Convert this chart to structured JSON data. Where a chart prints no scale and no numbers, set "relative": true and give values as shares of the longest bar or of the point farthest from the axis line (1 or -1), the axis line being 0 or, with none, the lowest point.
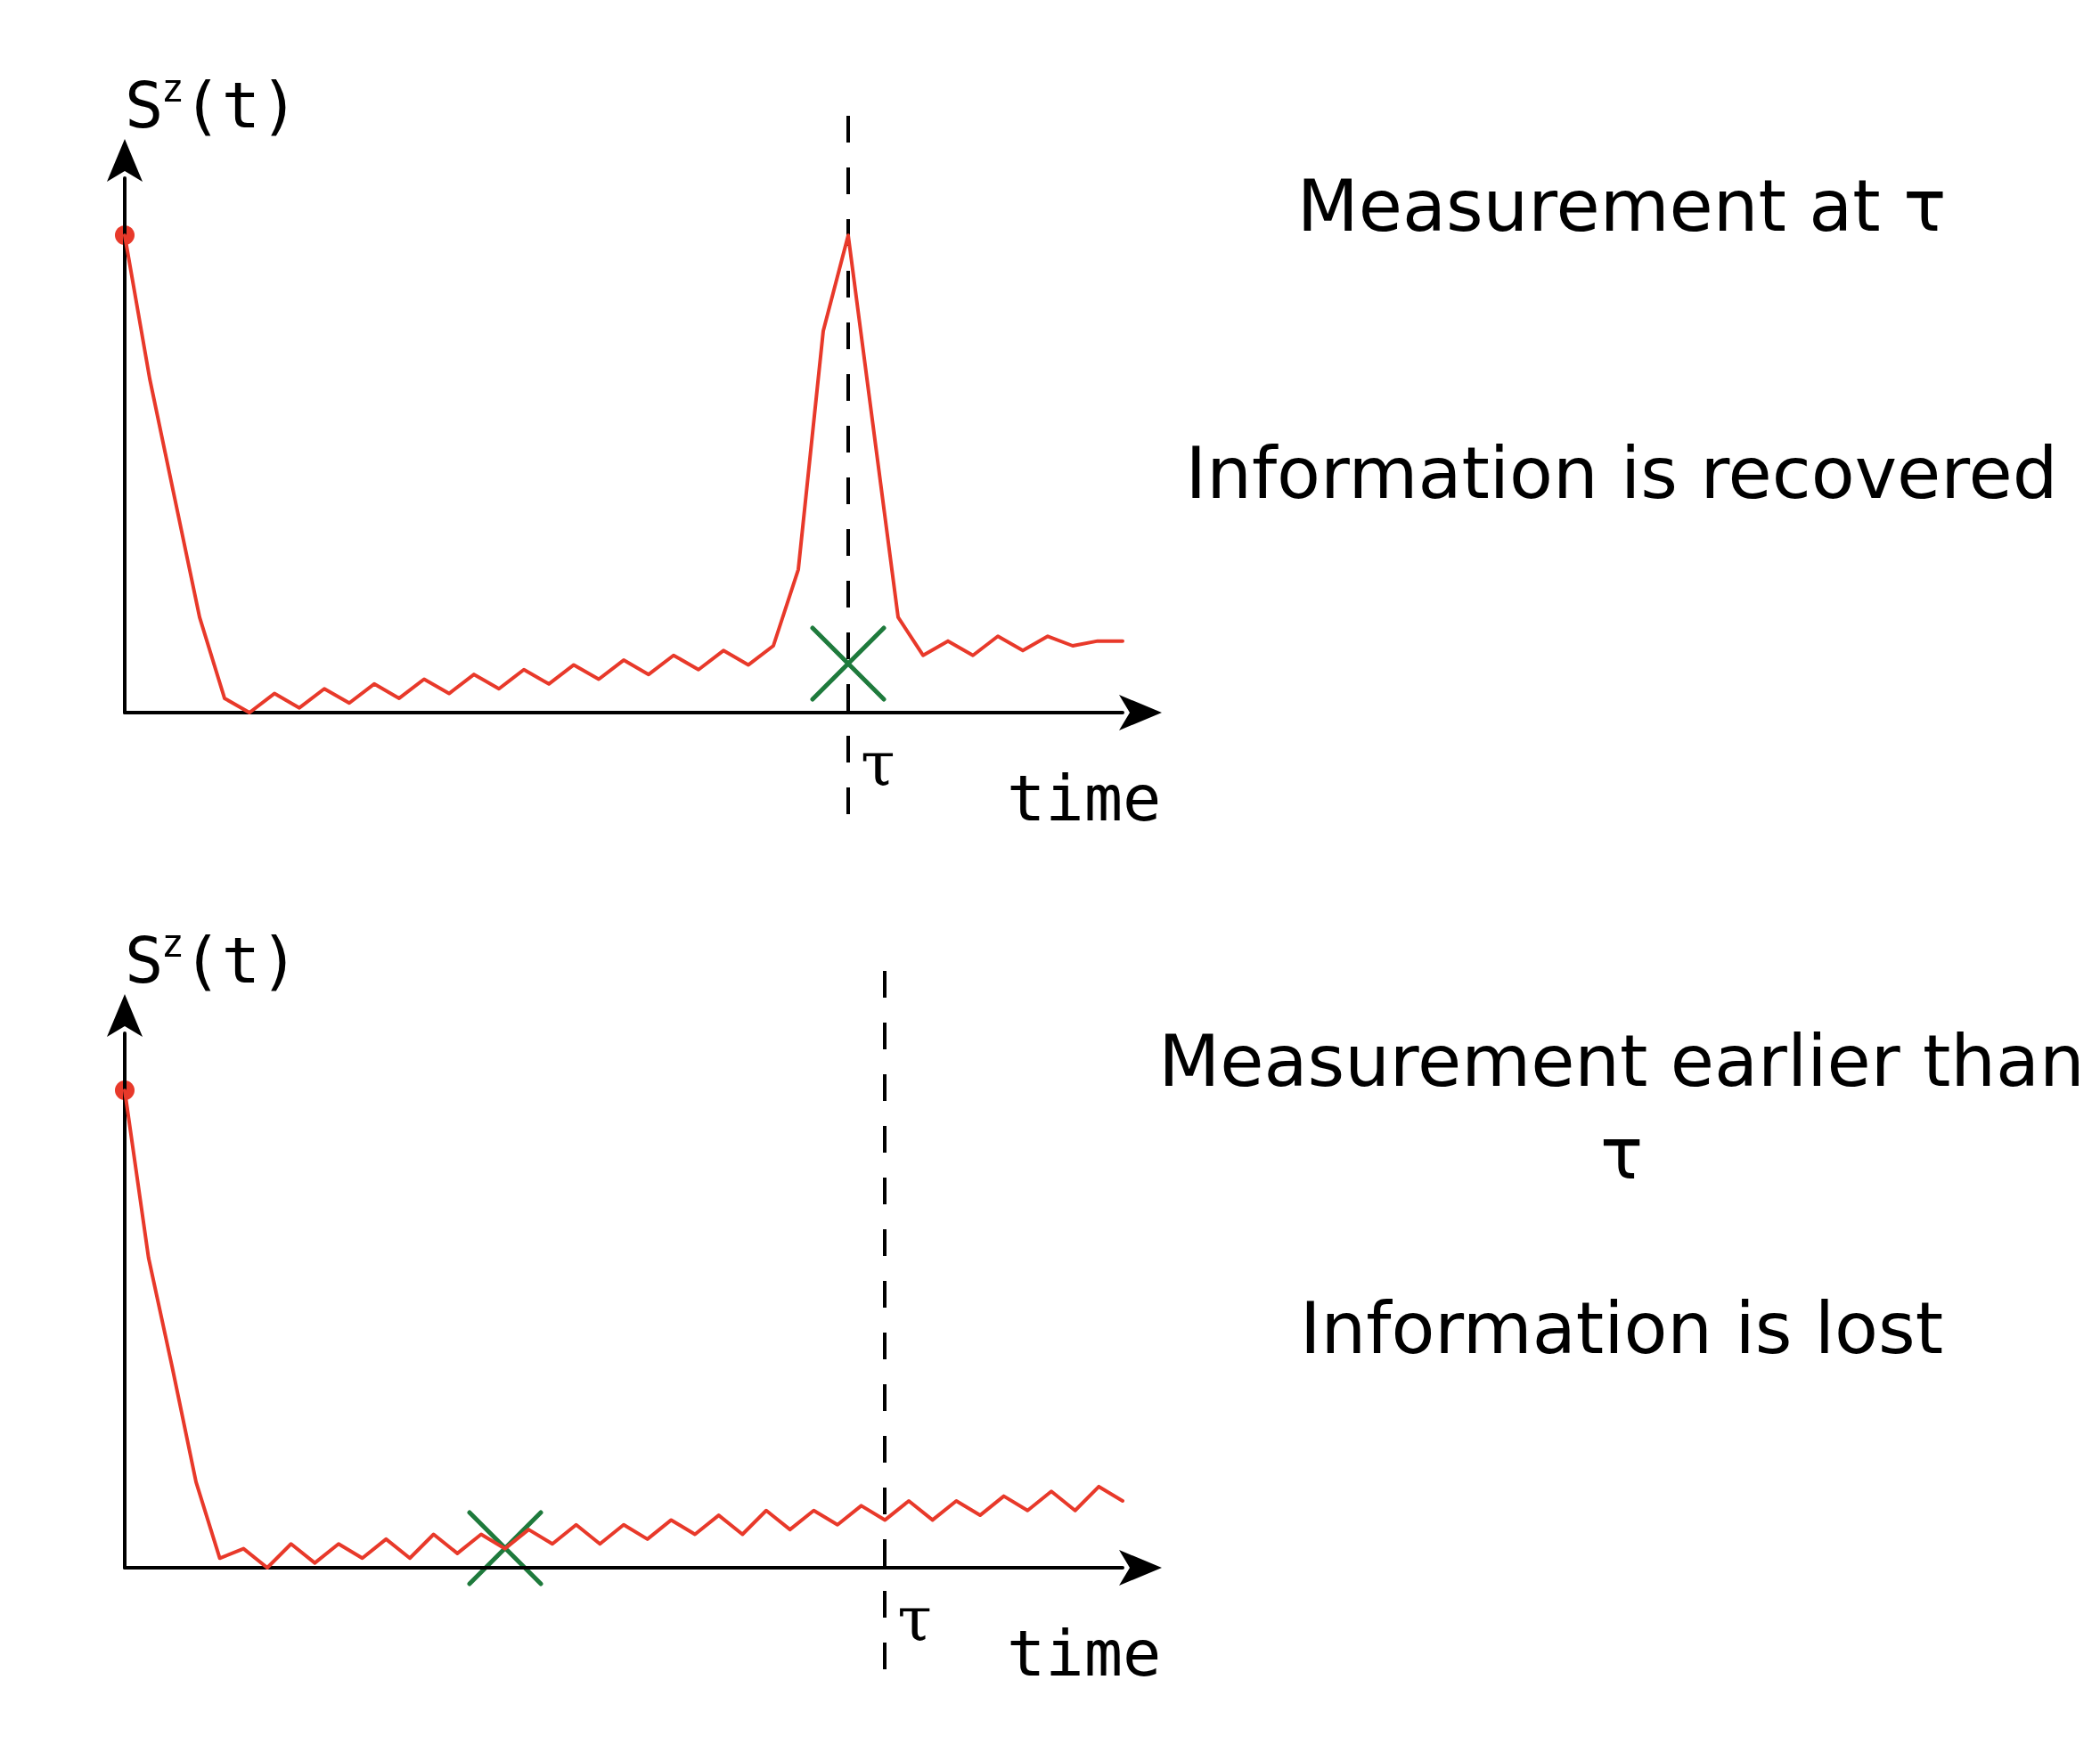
{
  "chart_data": [
    {
      "type": "line",
      "relative": true,
      "ylabel": "S$^{z}$(t)",
      "xlabel": "time",
      "line_style": "solid",
      "categories": [
        null,
        null,
        null,
        null,
        null,
        null,
        null,
        null,
        null,
        null,
        null,
        null,
        null,
        null,
        null,
        null,
        null,
        null,
        null,
        null,
        null,
        null,
        null,
        null,
        null,
        null,
        null,
        null,
        null,
        null,
        null,
        null,
        null,
        null,
        null,
        null,
        null,
        null,
        null,
        null,
        null
      ],
      "annotations": [
        "Measurement at τ",
        "Information is recovered",
        "τ"
      ],
      "series": [
        {
          "color": "#e8392a",
          "values": [
            1.0,
            0.7,
            0.45,
            0.2,
            0.03,
            0.0,
            0.04,
            0.01,
            0.05,
            0.02,
            0.06,
            0.03,
            0.07,
            0.04,
            0.08,
            0.05,
            0.09,
            0.06,
            0.1,
            0.07,
            0.11,
            0.08,
            0.12,
            0.09,
            0.13,
            0.1,
            0.14,
            0.3,
            0.8,
            1.0,
            0.6,
            0.2,
            0.12,
            0.15,
            0.12,
            0.16,
            0.13,
            0.16,
            0.14,
            0.15,
            0.15
          ]
        }
      ]
    },
    {
      "type": "line",
      "relative": true,
      "ylabel": "S$^{z}$(t)",
      "xlabel": "time",
      "line_style": "solid",
      "categories": [
        null,
        null,
        null,
        null,
        null,
        null,
        null,
        null,
        null,
        null,
        null,
        null,
        null,
        null,
        null,
        null,
        null,
        null,
        null,
        null,
        null,
        null,
        null,
        null,
        null,
        null,
        null,
        null,
        null,
        null,
        null,
        null,
        null,
        null,
        null,
        null,
        null,
        null,
        null,
        null,
        null,
        null,
        null
      ],
      "annotations": [
        "Measurement earlier than τ",
        "Information is lost",
        "τ"
      ],
      "series": [
        {
          "color": "#e8392a",
          "values": [
            1.0,
            0.65,
            0.42,
            0.18,
            0.02,
            0.04,
            0.0,
            0.05,
            0.01,
            0.05,
            0.02,
            0.06,
            0.02,
            0.07,
            0.03,
            0.07,
            0.04,
            0.08,
            0.05,
            0.09,
            0.05,
            0.09,
            0.06,
            0.1,
            0.07,
            0.11,
            0.07,
            0.12,
            0.08,
            0.12,
            0.09,
            0.13,
            0.1,
            0.14,
            0.1,
            0.14,
            0.11,
            0.15,
            0.12,
            0.16,
            0.12,
            0.17,
            0.14
          ]
        }
      ]
    }
  ]
}
